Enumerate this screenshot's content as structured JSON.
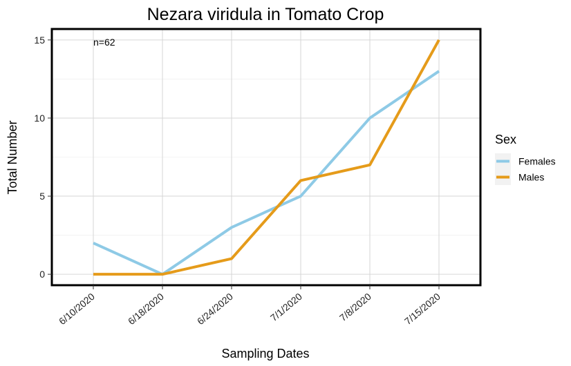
{
  "chart_data": {
    "type": "line",
    "title": "Nezara viridula in Tomato Crop",
    "xlabel": "Sampling Dates",
    "ylabel": "Total Number",
    "categories": [
      "6/10/2020",
      "6/18/2020",
      "6/24/2020",
      "7/1/2020",
      "7/8/2020",
      "7/15/2020"
    ],
    "series": [
      {
        "name": "Females",
        "values": [
          2,
          0,
          3,
          5,
          10,
          13
        ],
        "color": "#8ecae6"
      },
      {
        "name": "Males",
        "values": [
          0,
          0,
          1,
          6,
          7,
          15
        ],
        "color": "#e59b1a"
      }
    ],
    "ylim": [
      -0.7,
      15.7
    ],
    "yticks": [
      0,
      5,
      10,
      15
    ],
    "grid": true,
    "legend": {
      "title": "Sex",
      "position": "right"
    },
    "annotation": "n=62"
  }
}
